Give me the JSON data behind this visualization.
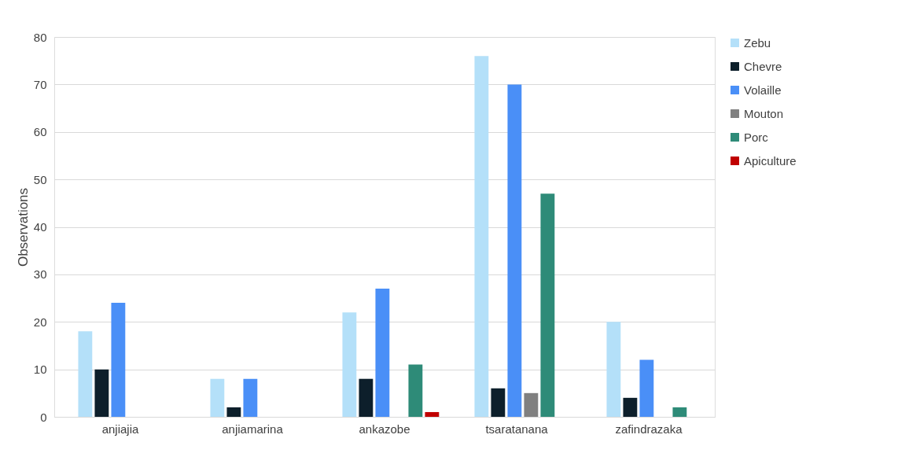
{
  "chart_data": {
    "type": "bar",
    "ylabel": "Observations",
    "categories": [
      "anjiajia",
      "anjiamarina",
      "ankazobe",
      "tsaratanana",
      "zafindrazaka"
    ],
    "series": [
      {
        "name": "Zebu",
        "color": "#b4e0f9",
        "values": [
          18,
          8,
          22,
          76,
          20
        ]
      },
      {
        "name": "Chevre",
        "color": "#0d1f2b",
        "values": [
          10,
          2,
          8,
          6,
          4
        ]
      },
      {
        "name": "Volaille",
        "color": "#4a8ff7",
        "values": [
          24,
          8,
          27,
          70,
          12
        ]
      },
      {
        "name": "Mouton",
        "color": "#808080",
        "values": [
          null,
          null,
          null,
          5,
          null
        ]
      },
      {
        "name": "Porc",
        "color": "#2e8b78",
        "values": [
          null,
          null,
          11,
          47,
          2
        ]
      },
      {
        "name": "Apiculture",
        "color": "#c00000",
        "values": [
          null,
          null,
          1,
          null,
          null
        ]
      }
    ],
    "ylim": [
      0,
      80
    ],
    "yticks": [
      0,
      10,
      20,
      30,
      40,
      50,
      60,
      70,
      80
    ],
    "grid": "y",
    "legend": "right"
  }
}
